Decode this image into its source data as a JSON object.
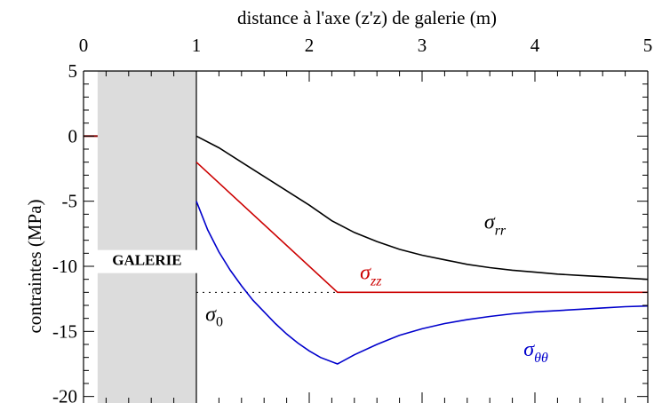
{
  "chart_data": {
    "type": "line",
    "title": "",
    "xlabel": "distance à l'axe (z'z) de galerie (m)",
    "ylabel": "contraintes (MPa)",
    "xlim": [
      0,
      5
    ],
    "ylim": [
      -20.5,
      5
    ],
    "x_ticks": [
      "0",
      "1",
      "2",
      "3",
      "4",
      "5"
    ],
    "y_ticks": [
      "5",
      "0",
      "-5",
      "-10",
      "-15",
      "-20"
    ],
    "x_tick_values": [
      0,
      1,
      2,
      3,
      4,
      5
    ],
    "y_tick_values": [
      5,
      0,
      -5,
      -10,
      -15,
      -20
    ],
    "x_axis_position": "top",
    "grid": false,
    "gallery_region": {
      "x_from": 0.125,
      "x_to": 1,
      "label": "GALERIE",
      "fill": "#dcdcdc"
    },
    "reference_line": {
      "y": -12,
      "label_symbol": "σ",
      "label_subscript": "0",
      "style": "dotted"
    },
    "series": [
      {
        "name": "σrr",
        "symbol": "σ",
        "subscript": "rr",
        "color": "#000000",
        "x": [
          1,
          1.2,
          1.4,
          1.6,
          1.8,
          2,
          2.2,
          2.4,
          2.6,
          2.8,
          3,
          3.2,
          3.4,
          3.6,
          3.8,
          4,
          4.2,
          4.4,
          4.6,
          4.8,
          5
        ],
        "y": [
          0,
          -0.9,
          -2.0,
          -3.1,
          -4.2,
          -5.3,
          -6.5,
          -7.4,
          -8.1,
          -8.7,
          -9.15,
          -9.5,
          -9.85,
          -10.1,
          -10.3,
          -10.45,
          -10.6,
          -10.7,
          -10.8,
          -10.9,
          -11.0
        ]
      },
      {
        "name": "σzz",
        "symbol": "σ",
        "subscript": "zz",
        "color": "#cc0000",
        "x": [
          1,
          2.25,
          5
        ],
        "y": [
          -2,
          -12,
          -12
        ]
      },
      {
        "name": "σθθ",
        "symbol": "σ",
        "subscript": "θθ",
        "color": "#0000cc",
        "x": [
          1,
          1.1,
          1.2,
          1.3,
          1.4,
          1.5,
          1.6,
          1.7,
          1.8,
          1.9,
          2,
          2.1,
          2.25,
          2.4,
          2.6,
          2.8,
          3,
          3.2,
          3.4,
          3.6,
          3.8,
          4,
          4.2,
          4.4,
          4.6,
          4.8,
          5
        ],
        "y": [
          -5,
          -7.2,
          -8.9,
          -10.3,
          -11.5,
          -12.6,
          -13.5,
          -14.4,
          -15.2,
          -15.9,
          -16.5,
          -17.0,
          -17.5,
          -16.8,
          -16.0,
          -15.3,
          -14.8,
          -14.4,
          -14.1,
          -13.85,
          -13.65,
          -13.5,
          -13.4,
          -13.3,
          -13.2,
          -13.1,
          -13.05
        ]
      }
    ]
  }
}
